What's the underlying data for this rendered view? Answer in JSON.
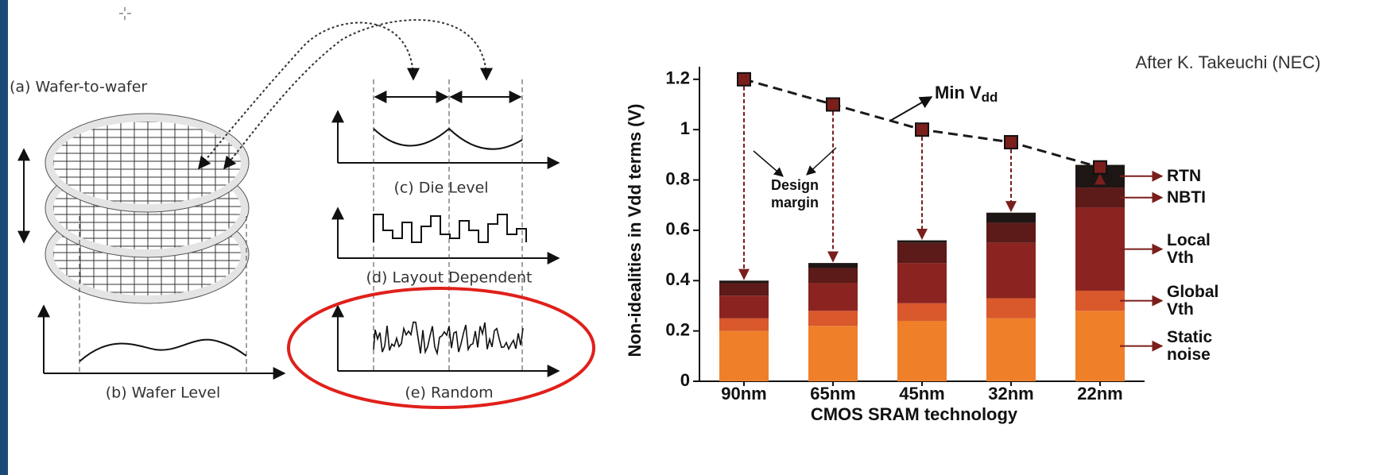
{
  "diagram": {
    "wafer_to_wafer": "(a) Wafer-to-wafer",
    "wafer_level": "(b) Wafer Level",
    "die_level": "(c) Die Level",
    "layout_dependent": "(d) Layout Dependent",
    "random": "(e) Random"
  },
  "chart_data": {
    "type": "stacked-bar",
    "source_note": "After K. Takeuchi (NEC)",
    "xlabel": "CMOS SRAM technology",
    "ylabel": "Non-idealities in Vdd terms (V)",
    "categories": [
      "90nm",
      "65nm",
      "45nm",
      "32nm",
      "22nm"
    ],
    "series": [
      {
        "name": "Static noise",
        "color": "#f07f2a",
        "values": [
          0.2,
          0.22,
          0.24,
          0.25,
          0.28
        ]
      },
      {
        "name": "Global Vth",
        "color": "#d9582c",
        "values": [
          0.05,
          0.06,
          0.07,
          0.08,
          0.08
        ]
      },
      {
        "name": "Local Vth",
        "color": "#8b2420",
        "values": [
          0.09,
          0.11,
          0.16,
          0.22,
          0.33
        ]
      },
      {
        "name": "NBTI",
        "color": "#5c1a18",
        "values": [
          0.05,
          0.06,
          0.08,
          0.08,
          0.08
        ]
      },
      {
        "name": "RTN",
        "color": "#1e1614",
        "values": [
          0.01,
          0.02,
          0.01,
          0.04,
          0.09
        ]
      }
    ],
    "overlay": {
      "type": "line",
      "label": "Min V",
      "label_sub": "dd",
      "color": "#1a1a1a",
      "marker_color": "#7a1f1c",
      "values": [
        1.2,
        1.1,
        1.0,
        0.95,
        0.85
      ]
    },
    "margin_label": "Design margin",
    "ylim": [
      0,
      1.25
    ],
    "yticks": [
      0,
      0.2,
      0.4,
      0.6,
      0.8,
      1,
      1.2
    ],
    "grid": false
  }
}
